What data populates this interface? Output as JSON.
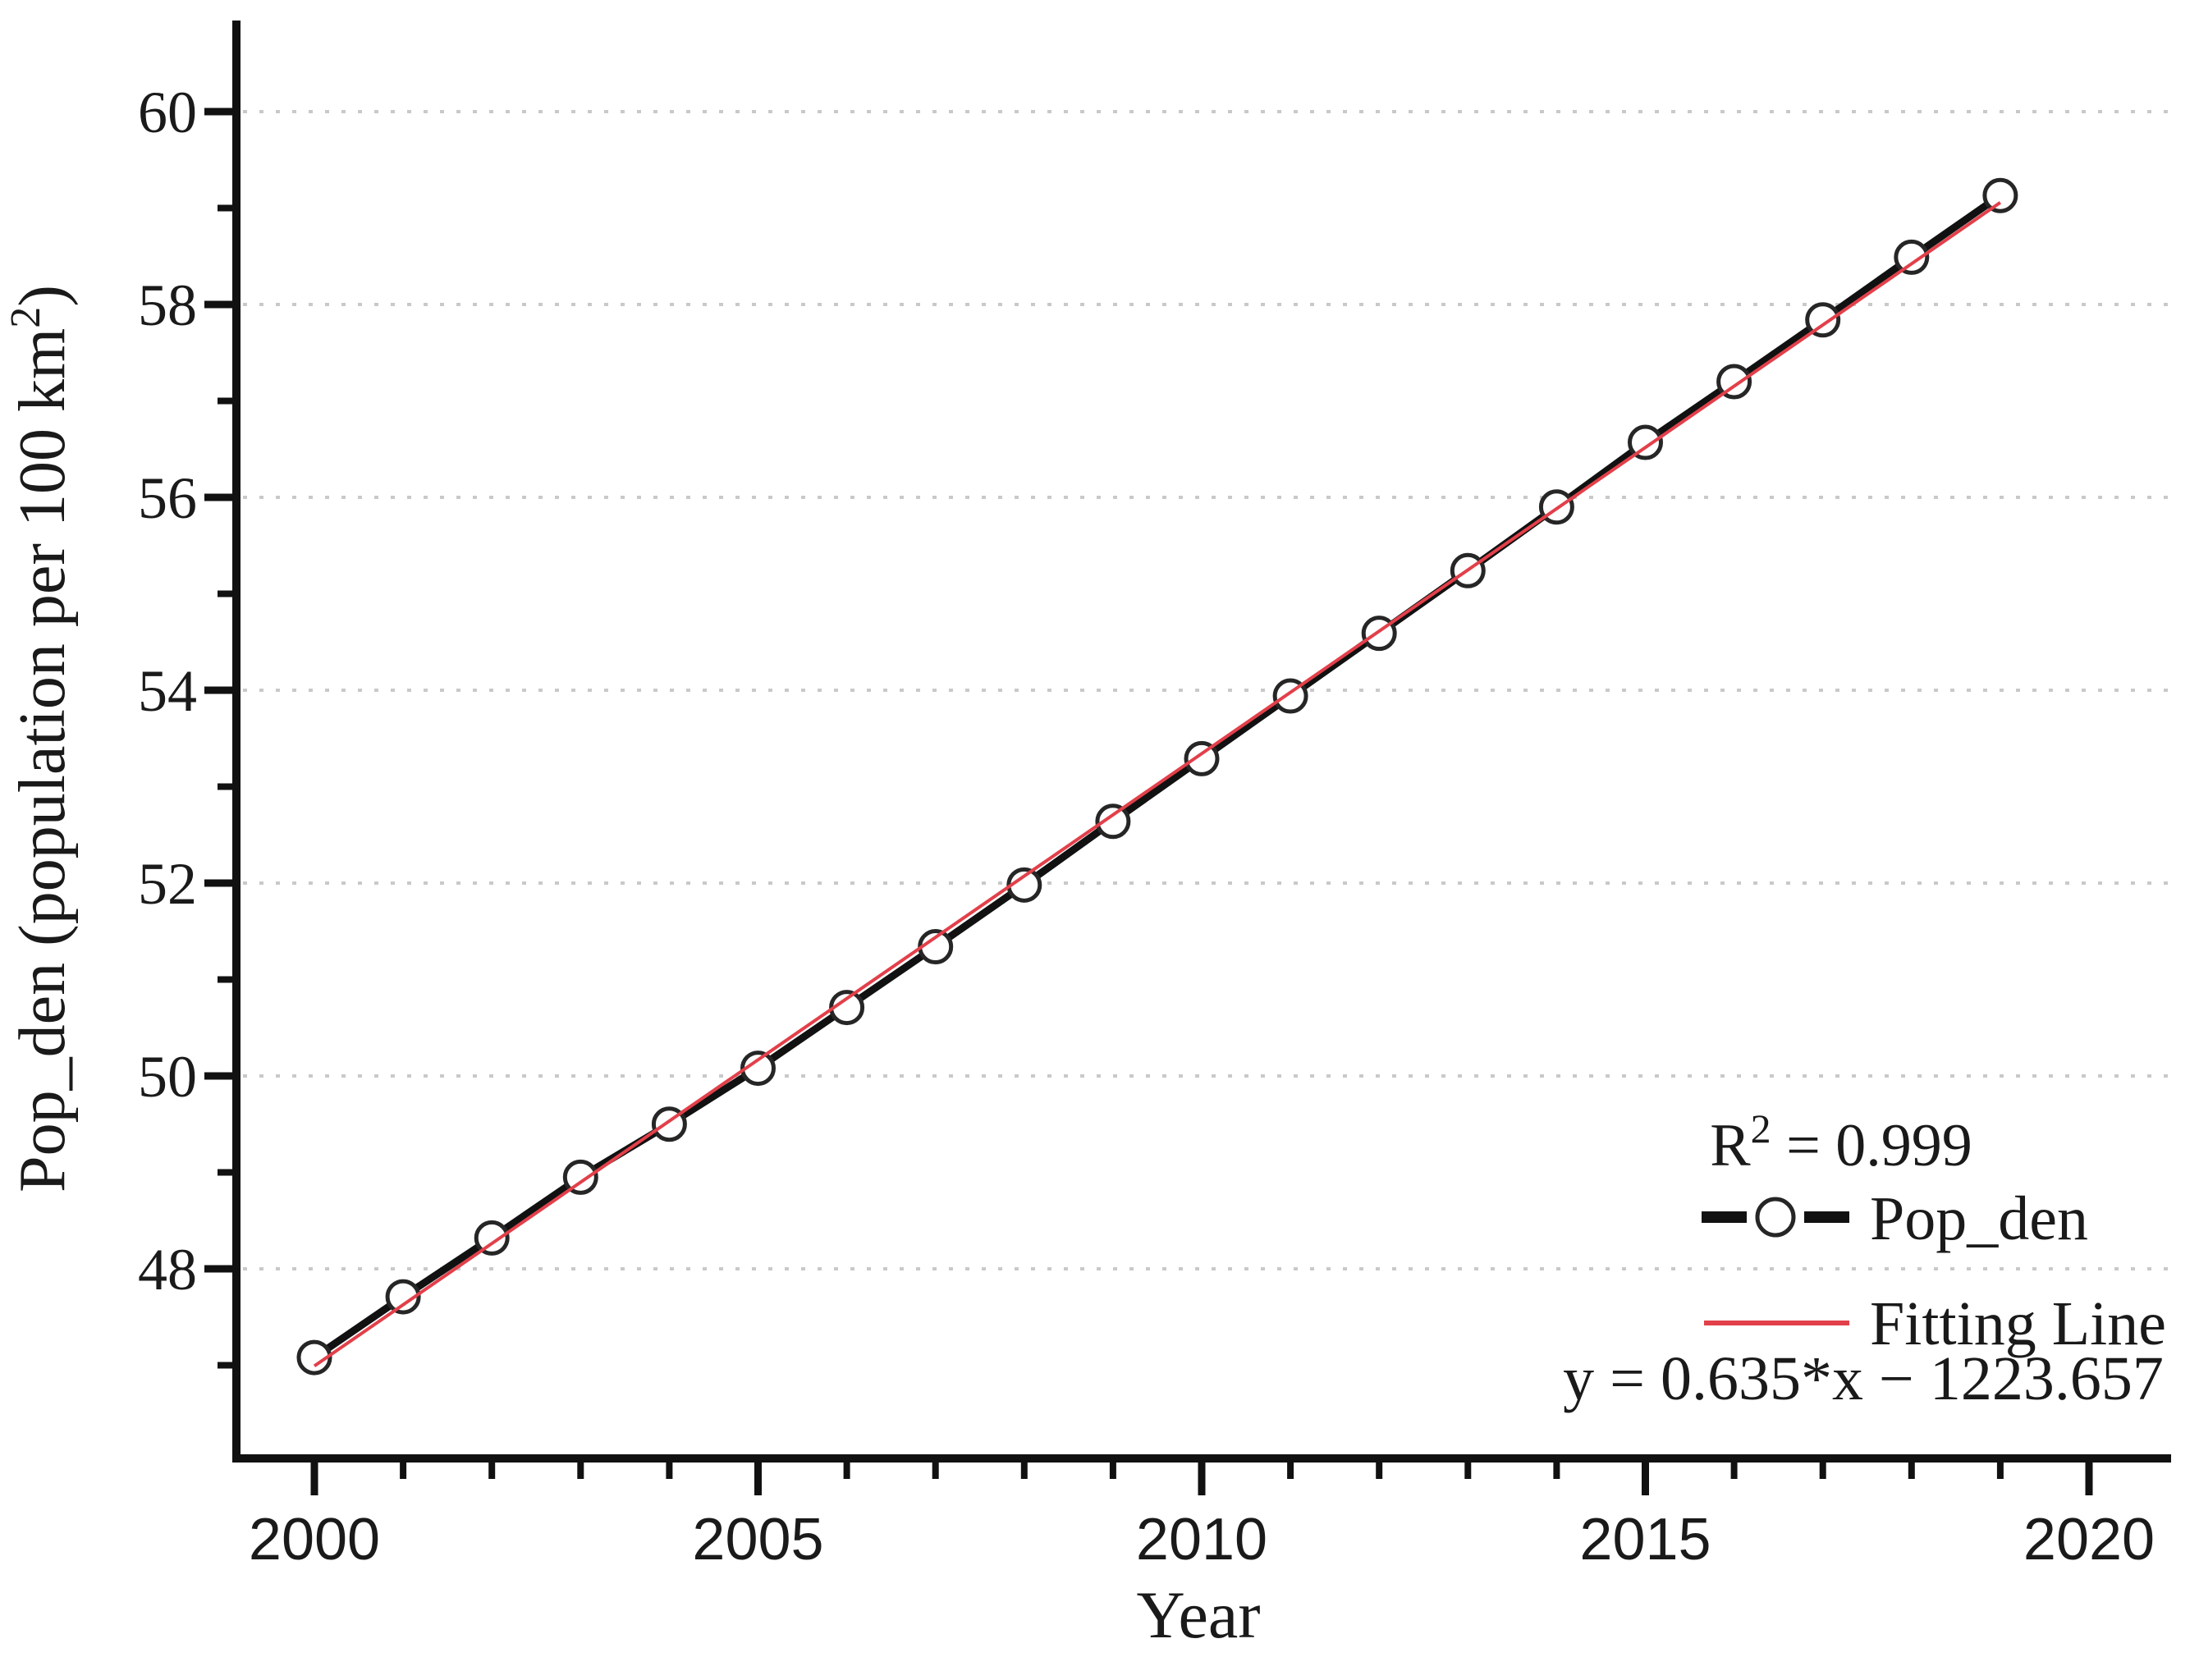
{
  "figure": {
    "background": "#ffffff",
    "text_color": "#1a1a1a",
    "axis_color": "#111111",
    "grid_color": "#c9c9c9",
    "accent_red": "#e2404a"
  },
  "chart_data": {
    "type": "line",
    "title": "",
    "xlabel": "Year",
    "ylabel": "Pop_den (population per 100 km²)",
    "ylabel_parts": {
      "main": "Pop_den (population per 100 km",
      "sup": "2",
      "end": ")"
    },
    "x_ticks_major": [
      2000,
      2005,
      2010,
      2015,
      2020
    ],
    "x_ticks_minor": [
      2001,
      2002,
      2003,
      2004,
      2006,
      2007,
      2008,
      2009,
      2011,
      2012,
      2013,
      2014,
      2016,
      2017,
      2018,
      2019
    ],
    "y_ticks_major": [
      60,
      58,
      56,
      54,
      52,
      50,
      48
    ],
    "y_ticks_minor": [
      59,
      57,
      55,
      53,
      51,
      49,
      47
    ],
    "xlim": [
      1999.12,
      2020.92
    ],
    "ylim": [
      46.03,
      60.94
    ],
    "grid": "horizontal-dotted",
    "legend_position": "lower-right",
    "categories": [
      2000,
      2001,
      2002,
      2003,
      2004,
      2005,
      2006,
      2007,
      2008,
      2009,
      2010,
      2011,
      2012,
      2013,
      2014,
      2015,
      2016,
      2017,
      2018,
      2019
    ],
    "series": [
      {
        "name": "Pop_den",
        "type": "line+markers",
        "color": "#111111",
        "marker": "open-circle",
        "x": [
          2000,
          2001,
          2002,
          2003,
          2004,
          2005,
          2006,
          2007,
          2008,
          2009,
          2010,
          2011,
          2012,
          2013,
          2014,
          2015,
          2016,
          2017,
          2018,
          2019
        ],
        "values": [
          47.08,
          47.71,
          48.32,
          48.95,
          49.5,
          50.08,
          50.71,
          51.34,
          51.98,
          52.64,
          53.29,
          53.94,
          54.59,
          55.24,
          55.9,
          56.57,
          57.2,
          57.84,
          58.49,
          59.13
        ]
      },
      {
        "name": "Fitting Line",
        "type": "line",
        "color": "#e2404a",
        "fit": {
          "slope": 0.635,
          "intercept": -1223.657,
          "r_squared": 0.999
        }
      }
    ],
    "annotations": {
      "r_squared_parts": {
        "base": "R",
        "sup": "2",
        "rest": " = 0.999"
      },
      "r_squared_label": "R² = 0.999",
      "equation_label": "y = 0.635*x − 1223.657"
    }
  }
}
